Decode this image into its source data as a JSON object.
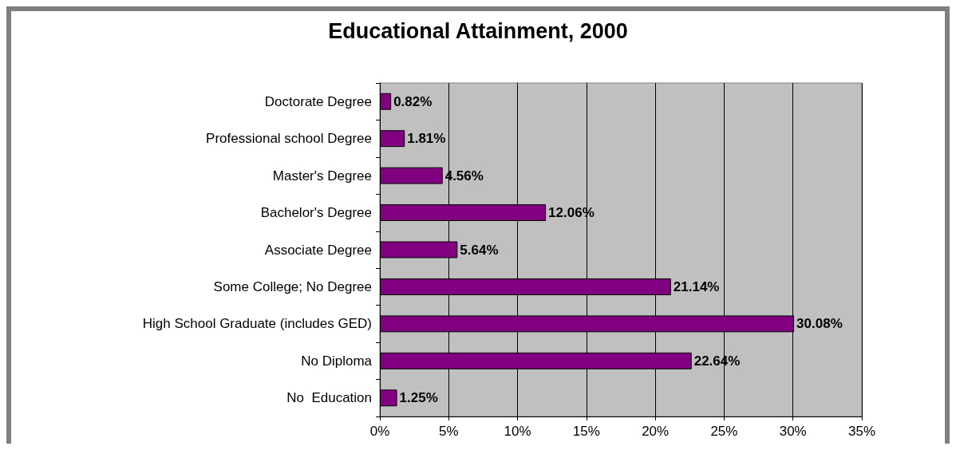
{
  "chart_data": {
    "type": "bar",
    "orientation": "horizontal",
    "title": "Educational Attainment, 2000",
    "categories": [
      "Doctorate Degree",
      "Professional school Degree",
      "Master's Degree",
      "Bachelor's Degree",
      "Associate Degree",
      "Some College; No Degree",
      "High School Graduate (includes GED)",
      "No Diploma",
      "No  Education"
    ],
    "values": [
      0.82,
      1.81,
      4.56,
      12.06,
      5.64,
      21.14,
      30.08,
      22.64,
      1.25
    ],
    "value_labels": [
      "0.82%",
      "1.81%",
      "4.56%",
      "12.06%",
      "5.64%",
      "21.14%",
      "30.08%",
      "22.64%",
      "1.25%"
    ],
    "color": "#800080",
    "xlim": [
      0,
      35
    ],
    "xticks": [
      {
        "value": 0,
        "label": "0%"
      },
      {
        "value": 5,
        "label": "5%"
      },
      {
        "value": 10,
        "label": "10%"
      },
      {
        "value": 15,
        "label": "15%"
      },
      {
        "value": 20,
        "label": "20%"
      },
      {
        "value": 25,
        "label": "25%"
      },
      {
        "value": 30,
        "label": "30%"
      },
      {
        "value": 35,
        "label": "35%"
      }
    ],
    "grid": "x"
  }
}
